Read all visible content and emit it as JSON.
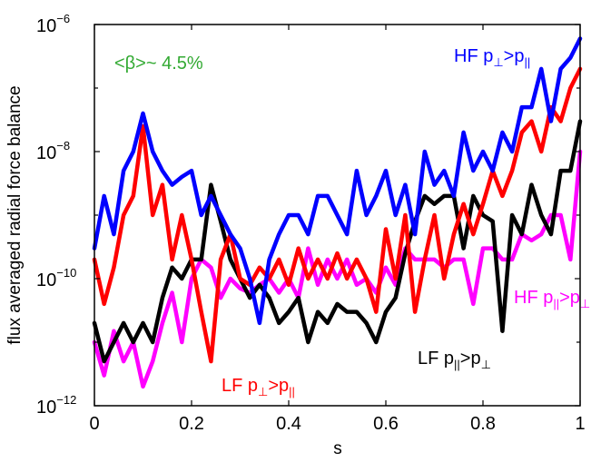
{
  "chart_data": {
    "type": "line",
    "xlabel": "s",
    "ylabel": "flux averaged radial force balance",
    "xlim": [
      0,
      1
    ],
    "ylim": [
      1e-12,
      1e-06
    ],
    "yscale": "log",
    "grid": false,
    "x_ticks": [
      "0",
      "0.2",
      "0.4",
      "0.6",
      "0.8",
      "1"
    ],
    "y_ticks": [
      {
        "base": "10",
        "exp": "−12"
      },
      {
        "base": "10",
        "exp": "−10"
      },
      {
        "base": "10",
        "exp": "−8"
      },
      {
        "base": "10",
        "exp": "−6"
      }
    ],
    "annotations": [
      {
        "text": "<β>~ 4.5%",
        "color": "#33aa33"
      },
      {
        "text": "HF p⊥>p||",
        "main": "HF p",
        "sub1": "⊥",
        "gt": ">p",
        "sub2": "||",
        "color": "#0000ff"
      },
      {
        "text": "HF p||>p⊥",
        "main": "HF p",
        "sub1": "||",
        "gt": ">p",
        "sub2": "⊥",
        "color": "#ff00ff"
      },
      {
        "text": "LF p||>p⊥",
        "main": "LF p",
        "sub1": "||",
        "gt": ">p",
        "sub2": "⊥",
        "color": "#000000"
      },
      {
        "text": "LF p⊥>p||",
        "main": "LF p",
        "sub1": "⊥",
        "gt": ">p",
        "sub2": "||",
        "color": "#ff0000"
      }
    ],
    "series": [
      {
        "color": "#ff00ff",
        "x": [
          0,
          0.02,
          0.04,
          0.06,
          0.08,
          0.1,
          0.12,
          0.14,
          0.16,
          0.18,
          0.2,
          0.22,
          0.24,
          0.26,
          0.28,
          0.3,
          0.32,
          0.34,
          0.36,
          0.38,
          0.4,
          0.42,
          0.44,
          0.46,
          0.48,
          0.5,
          0.52,
          0.54,
          0.56,
          0.58,
          0.6,
          0.62,
          0.64,
          0.66,
          0.68,
          0.7,
          0.72,
          0.74,
          0.76,
          0.78,
          0.8,
          0.82,
          0.84,
          0.86,
          0.88,
          0.9,
          0.92,
          0.94,
          0.96,
          0.98,
          1
        ],
        "y": [
          1e-11,
          3e-12,
          1.5e-11,
          5e-12,
          1e-11,
          2e-12,
          5e-12,
          2e-11,
          6e-11,
          1e-11,
          1e-10,
          2e-10,
          1.5e-10,
          5e-11,
          1e-10,
          7e-11,
          6e-11,
          8e-11,
          1e-10,
          6e-11,
          1e-10,
          5e-11,
          3e-10,
          8e-11,
          2e-10,
          1e-10,
          2e-10,
          8e-11,
          1e-10,
          6e-11,
          1.5e-10,
          8e-11,
          3e-10,
          2e-10,
          2e-10,
          2e-10,
          1.5e-10,
          2e-10,
          2e-10,
          4e-11,
          3e-10,
          3e-10,
          2e-10,
          2e-10,
          5e-10,
          4e-10,
          5e-10,
          1e-09,
          1e-09,
          2e-10,
          1e-08
        ]
      },
      {
        "color": "#000000",
        "x": [
          0,
          0.02,
          0.04,
          0.06,
          0.08,
          0.1,
          0.12,
          0.14,
          0.16,
          0.18,
          0.2,
          0.22,
          0.24,
          0.26,
          0.28,
          0.3,
          0.32,
          0.34,
          0.36,
          0.38,
          0.4,
          0.42,
          0.44,
          0.46,
          0.48,
          0.5,
          0.52,
          0.54,
          0.56,
          0.58,
          0.6,
          0.62,
          0.64,
          0.66,
          0.68,
          0.7,
          0.72,
          0.74,
          0.76,
          0.78,
          0.8,
          0.82,
          0.84,
          0.86,
          0.88,
          0.9,
          0.92,
          0.94,
          0.96,
          0.98,
          1
        ],
        "y": [
          2e-11,
          5e-12,
          1e-11,
          2e-11,
          1e-11,
          2e-11,
          1e-11,
          5e-11,
          1.5e-10,
          1e-10,
          2e-10,
          2e-10,
          3e-09,
          8e-10,
          2e-10,
          1e-10,
          5e-11,
          8e-11,
          5e-11,
          2e-11,
          3e-11,
          5e-11,
          1e-11,
          3e-11,
          2e-11,
          4e-11,
          3e-11,
          3e-11,
          2e-11,
          1e-11,
          3e-11,
          5e-11,
          2.5e-10,
          8e-10,
          2e-09,
          1.5e-09,
          2e-09,
          2e-09,
          3e-10,
          2e-09,
          1e-09,
          8e-10,
          1.5e-11,
          1e-09,
          5e-10,
          3e-09,
          1e-09,
          5e-10,
          5e-09,
          5e-09,
          3e-08
        ]
      },
      {
        "color": "#ff0000",
        "x": [
          0,
          0.02,
          0.04,
          0.06,
          0.08,
          0.1,
          0.12,
          0.14,
          0.16,
          0.18,
          0.2,
          0.22,
          0.24,
          0.26,
          0.28,
          0.3,
          0.32,
          0.34,
          0.36,
          0.38,
          0.4,
          0.42,
          0.44,
          0.46,
          0.48,
          0.5,
          0.52,
          0.54,
          0.56,
          0.58,
          0.6,
          0.62,
          0.64,
          0.66,
          0.68,
          0.7,
          0.72,
          0.74,
          0.76,
          0.78,
          0.8,
          0.82,
          0.84,
          0.86,
          0.88,
          0.9,
          0.92,
          0.94,
          0.96,
          0.98,
          1
        ],
        "y": [
          2e-10,
          4e-11,
          1.5e-10,
          1e-09,
          2e-09,
          2.5e-08,
          1e-09,
          3e-09,
          2e-10,
          1e-09,
          2e-10,
          3e-11,
          5e-12,
          2e-10,
          5e-10,
          1e-10,
          8e-11,
          1.5e-10,
          1e-10,
          2e-10,
          8e-11,
          3e-10,
          1e-10,
          2e-10,
          1e-10,
          2.5e-10,
          1e-10,
          2e-10,
          1e-10,
          3e-11,
          6e-10,
          1e-10,
          1e-09,
          3e-11,
          2e-10,
          1e-09,
          1e-10,
          5e-10,
          1.5e-09,
          5e-10,
          1.5e-09,
          5e-09,
          2e-09,
          5e-09,
          2e-08,
          3e-08,
          1e-08,
          5e-08,
          3e-08,
          1e-07,
          2e-07
        ]
      },
      {
        "color": "#0000ff",
        "x": [
          0,
          0.02,
          0.04,
          0.06,
          0.08,
          0.1,
          0.12,
          0.14,
          0.16,
          0.18,
          0.2,
          0.22,
          0.24,
          0.26,
          0.28,
          0.3,
          0.32,
          0.34,
          0.36,
          0.38,
          0.4,
          0.42,
          0.44,
          0.46,
          0.48,
          0.5,
          0.52,
          0.54,
          0.56,
          0.58,
          0.6,
          0.62,
          0.64,
          0.66,
          0.68,
          0.7,
          0.72,
          0.74,
          0.76,
          0.78,
          0.8,
          0.82,
          0.84,
          0.86,
          0.88,
          0.9,
          0.92,
          0.94,
          0.96,
          0.98,
          1
        ],
        "y": [
          3e-10,
          2e-09,
          5e-10,
          5e-09,
          1e-08,
          4e-08,
          1e-08,
          5e-09,
          3e-09,
          4e-09,
          5e-09,
          1e-09,
          2e-09,
          1e-09,
          5e-10,
          3e-10,
          1e-10,
          2e-11,
          2e-10,
          5e-10,
          1e-09,
          1e-09,
          5e-10,
          2e-09,
          2e-09,
          1e-09,
          5e-10,
          5e-09,
          1e-09,
          2e-09,
          5e-09,
          1e-09,
          3e-09,
          5e-10,
          1e-08,
          3e-09,
          5e-09,
          2e-09,
          2e-08,
          5e-09,
          1e-08,
          5e-09,
          2e-08,
          1e-08,
          5e-08,
          5e-08,
          2e-07,
          3e-08,
          2e-07,
          3e-07,
          6e-07
        ]
      }
    ]
  }
}
